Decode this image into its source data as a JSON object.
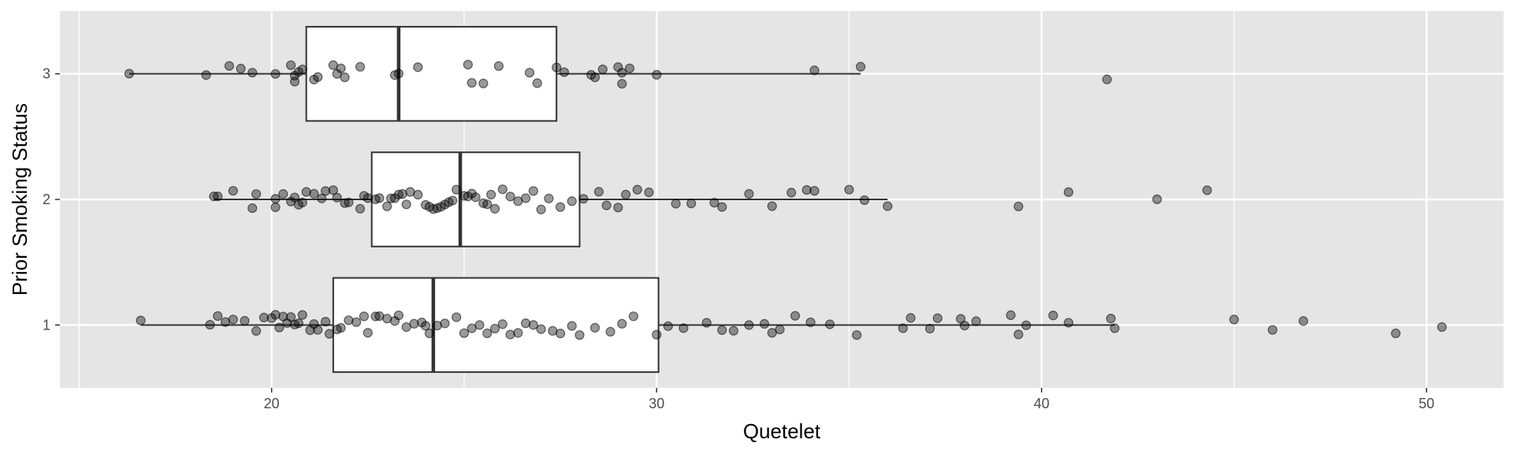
{
  "chart_data": {
    "type": "boxplot",
    "orientation": "horizontal",
    "xlabel": "Quetelet",
    "ylabel": "Prior Smoking Status",
    "xlim": [
      14.5,
      52
    ],
    "x_ticks": [
      20,
      30,
      40,
      50
    ],
    "categories": [
      "1",
      "2",
      "3"
    ],
    "grid": true,
    "legend": "none",
    "colors": {
      "panel": "#e5e5e5",
      "grid": "#ffffff",
      "box_fill": "#ffffff",
      "box_stroke": "#333333",
      "point": "#000000"
    },
    "boxes": [
      {
        "category": "1",
        "whisker_low": 16.6,
        "q1": 21.6,
        "median": 24.2,
        "q3": 30.05,
        "whisker_high": 41.9
      },
      {
        "category": "2",
        "whisker_low": 18.5,
        "q1": 22.6,
        "median": 24.9,
        "q3": 28.0,
        "whisker_high": 36.0
      },
      {
        "category": "3",
        "whisker_low": 16.3,
        "q1": 20.9,
        "median": 23.3,
        "q3": 27.4,
        "whisker_high": 35.3
      }
    ],
    "points": [
      {
        "category": "3",
        "values": [
          16.3,
          18.3,
          18.9,
          19.2,
          19.5,
          20.1,
          20.5,
          20.6,
          20.6,
          20.7,
          20.8,
          21.1,
          21.2,
          21.6,
          21.7,
          21.8,
          21.9,
          22.3,
          23.2,
          23.3,
          23.8,
          25.1,
          25.2,
          25.5,
          25.9,
          26.7,
          26.9,
          27.4,
          27.6,
          28.3,
          28.4,
          28.6,
          29.0,
          29.1,
          29.1,
          29.3,
          30.0,
          34.1,
          35.3,
          41.7
        ]
      },
      {
        "category": "2",
        "values": [
          18.5,
          18.6,
          19.0,
          19.5,
          19.6,
          20.1,
          20.1,
          20.3,
          20.5,
          20.6,
          20.7,
          20.8,
          20.9,
          21.1,
          21.3,
          21.4,
          21.6,
          21.7,
          21.9,
          22.0,
          22.3,
          22.4,
          22.5,
          22.7,
          22.8,
          23.0,
          23.1,
          23.2,
          23.3,
          23.4,
          23.5,
          23.6,
          23.8,
          24.0,
          24.1,
          24.2,
          24.3,
          24.4,
          24.5,
          24.6,
          24.7,
          24.8,
          25.0,
          25.1,
          25.2,
          25.3,
          25.5,
          25.6,
          25.7,
          25.8,
          26.0,
          26.2,
          26.4,
          26.6,
          26.8,
          27.0,
          27.2,
          27.5,
          27.8,
          28.1,
          28.5,
          28.7,
          29.0,
          29.2,
          29.5,
          29.8,
          30.5,
          30.9,
          31.5,
          31.7,
          32.4,
          33.0,
          33.5,
          33.9,
          34.1,
          35.0,
          35.4,
          36.0,
          39.4,
          40.7,
          43.0,
          44.3
        ]
      },
      {
        "category": "1",
        "values": [
          16.6,
          18.4,
          18.6,
          18.8,
          19.0,
          19.3,
          19.6,
          19.8,
          20.0,
          20.1,
          20.2,
          20.3,
          20.4,
          20.5,
          20.6,
          20.7,
          20.8,
          21.0,
          21.1,
          21.2,
          21.4,
          21.5,
          21.7,
          21.8,
          22.0,
          22.2,
          22.4,
          22.5,
          22.7,
          22.8,
          23.0,
          23.2,
          23.3,
          23.5,
          23.7,
          23.9,
          24.0,
          24.1,
          24.3,
          24.5,
          24.8,
          25.0,
          25.2,
          25.4,
          25.6,
          25.8,
          26.0,
          26.2,
          26.4,
          26.6,
          26.8,
          27.0,
          27.3,
          27.5,
          27.8,
          28.0,
          28.4,
          28.8,
          29.1,
          29.4,
          30.0,
          30.3,
          30.7,
          31.3,
          31.7,
          32.0,
          32.4,
          32.8,
          33.0,
          33.2,
          33.6,
          34.0,
          34.5,
          35.2,
          36.4,
          36.6,
          37.1,
          37.3,
          37.9,
          38.0,
          38.3,
          39.2,
          39.4,
          39.6,
          40.3,
          40.7,
          41.8,
          41.9,
          45.0,
          46.0,
          46.8,
          49.2,
          50.4
        ]
      }
    ]
  }
}
